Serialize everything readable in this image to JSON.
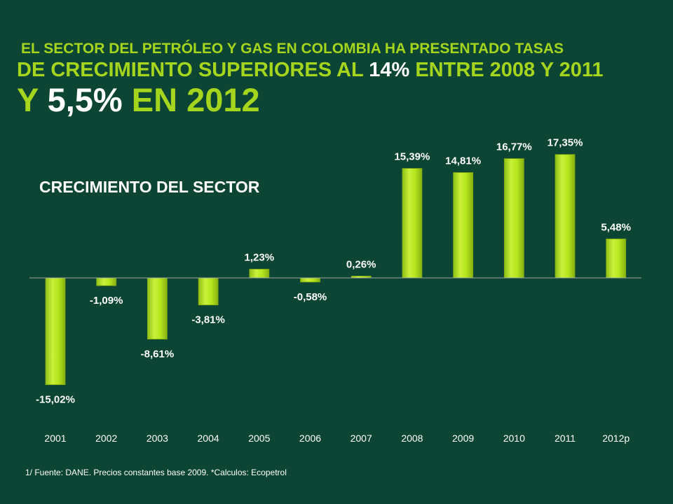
{
  "title": {
    "line1": "EL SECTOR DEL PETRÓLEO Y GAS EN COLOMBIA HA PRESENTADO TASAS",
    "line2_pre": "DE CRECIMIENTO SUPERIORES AL ",
    "line2_hl": "14%",
    "line2_post": " ENTRE 2008 Y 2011",
    "line3_pre": "Y ",
    "line3_hl": "5,5%",
    "line3_post": " EN 2012"
  },
  "footnote": "1/ Fuente: DANE. Precios constantes base 2009.  *Calculos: Ecopetrol",
  "colors": {
    "background": "#0d4535",
    "accent": "#a5d51d",
    "bar": "#b5e61d",
    "bar_edge": "#7ea812",
    "axis": "#9aa8a0",
    "text": "#ffffff"
  },
  "chart_data": {
    "type": "bar",
    "title": "CRECIMIENTO DEL SECTOR",
    "xlabel": "",
    "ylabel": "",
    "categories": [
      "2001",
      "2002",
      "2003",
      "2004",
      "2005",
      "2006",
      "2007",
      "2008",
      "2009",
      "2010",
      "2011",
      "2012p"
    ],
    "values": [
      -15.02,
      -1.09,
      -8.61,
      -3.81,
      1.23,
      -0.58,
      0.26,
      15.39,
      14.81,
      16.77,
      17.35,
      5.48
    ],
    "value_labels": [
      "-15,02%",
      "-1,09%",
      "-8,61%",
      "-3,81%",
      "1,23%",
      "-0,58%",
      "0,26%",
      "15,39%",
      "14,81%",
      "16,77%",
      "17,35%",
      "5,48%"
    ],
    "ylim": [
      -16,
      18
    ],
    "grid": false,
    "legend": "none"
  }
}
